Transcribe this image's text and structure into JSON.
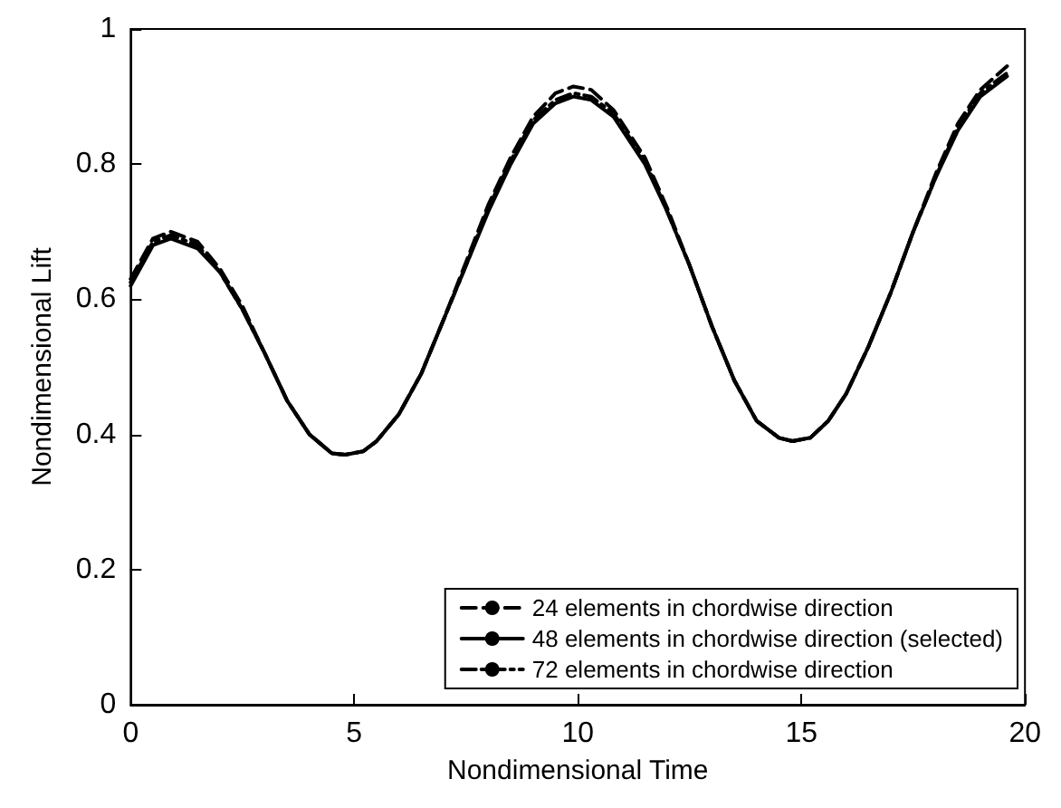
{
  "chart_data": {
    "type": "line",
    "xlabel": "Nondimensional Time",
    "ylabel": "Nondimensional Lift",
    "x": [
      0,
      0.5,
      0.9,
      1.5,
      2,
      2.5,
      3,
      3.5,
      4,
      4.5,
      4.8,
      5.2,
      5.5,
      6,
      6.5,
      7,
      7.5,
      8,
      8.5,
      9,
      9.5,
      9.9,
      10.3,
      10.8,
      11.5,
      12,
      12.5,
      13,
      13.5,
      14,
      14.5,
      14.8,
      15.2,
      15.6,
      16,
      16.5,
      17,
      17.5,
      18,
      18.5,
      19,
      19.6
    ],
    "series": [
      {
        "name": "24 elements in chordwise direction",
        "color": "#000000",
        "line_style": "dashed",
        "values": [
          0.63,
          0.69,
          0.7,
          0.685,
          0.645,
          0.59,
          0.52,
          0.45,
          0.4,
          0.372,
          0.37,
          0.375,
          0.39,
          0.43,
          0.49,
          0.57,
          0.655,
          0.74,
          0.81,
          0.87,
          0.905,
          0.915,
          0.91,
          0.88,
          0.81,
          0.735,
          0.65,
          0.56,
          0.48,
          0.42,
          0.395,
          0.39,
          0.395,
          0.42,
          0.46,
          0.53,
          0.61,
          0.7,
          0.785,
          0.86,
          0.91,
          0.945
        ]
      },
      {
        "name": "48 elements in chordwise direction (selected)",
        "color": "#000000",
        "line_style": "solid",
        "values": [
          0.62,
          0.68,
          0.69,
          0.675,
          0.64,
          0.585,
          0.52,
          0.45,
          0.4,
          0.372,
          0.37,
          0.375,
          0.39,
          0.43,
          0.49,
          0.57,
          0.65,
          0.73,
          0.8,
          0.86,
          0.89,
          0.9,
          0.895,
          0.87,
          0.8,
          0.73,
          0.65,
          0.56,
          0.48,
          0.42,
          0.395,
          0.39,
          0.395,
          0.42,
          0.46,
          0.53,
          0.61,
          0.7,
          0.78,
          0.85,
          0.9,
          0.93
        ]
      },
      {
        "name": "72 elements in chordwise direction",
        "color": "#000000",
        "line_style": "dashdot",
        "values": [
          0.625,
          0.685,
          0.695,
          0.68,
          0.64,
          0.585,
          0.52,
          0.45,
          0.4,
          0.372,
          0.37,
          0.375,
          0.39,
          0.43,
          0.49,
          0.57,
          0.65,
          0.735,
          0.805,
          0.865,
          0.895,
          0.905,
          0.9,
          0.875,
          0.805,
          0.73,
          0.65,
          0.56,
          0.48,
          0.42,
          0.395,
          0.39,
          0.395,
          0.42,
          0.46,
          0.53,
          0.61,
          0.7,
          0.78,
          0.855,
          0.905,
          0.935
        ]
      }
    ],
    "xlim": [
      0,
      20
    ],
    "xticks": [
      0,
      5,
      10,
      15,
      20
    ],
    "ylim": [
      0,
      1
    ],
    "yticks": [
      0,
      0.2,
      0.4,
      0.6,
      0.8,
      1
    ],
    "grid": false,
    "legend": "bottom right",
    "marker": "none"
  }
}
